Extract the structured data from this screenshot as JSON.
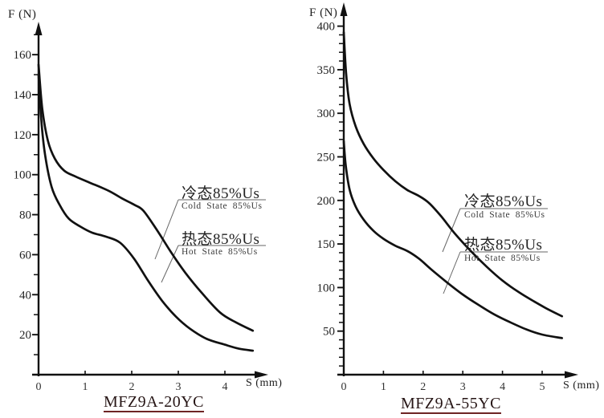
{
  "page": {
    "background": "#ffffff"
  },
  "colors": {
    "curve": "#111111",
    "axis": "#111111",
    "tick_label": "#222222",
    "x_tick_label": "#333333",
    "callout_line": "#666666",
    "title_text": "#261515",
    "title_underline": "#6e2424"
  },
  "chart_data": [
    {
      "type": "line",
      "title": "MFZ9A-20YC",
      "xlabel": "S (mm)",
      "ylabel": "F (N)",
      "xlim": [
        0,
        4.7
      ],
      "ylim": [
        0,
        170
      ],
      "x_ticks": [
        0,
        1,
        2,
        3,
        4
      ],
      "y_ticks": [
        20,
        40,
        60,
        80,
        100,
        120,
        140,
        160
      ],
      "y_minor_step": 10,
      "y_minor_max": 170,
      "grid": false,
      "legend_position": "callouts-right-middle",
      "legend": {
        "cold": {
          "zh": "冷态85%Us",
          "en": "Cold State 85%Us"
        },
        "hot": {
          "zh": "热态85%Us",
          "en": "Hot State 85%Us"
        }
      },
      "series": [
        {
          "name": "Cold State 85%Us",
          "points": [
            [
              0,
              155
            ],
            [
              0.08,
              133
            ],
            [
              0.2,
              117
            ],
            [
              0.35,
              108
            ],
            [
              0.55,
              102
            ],
            [
              0.8,
              99
            ],
            [
              1.1,
              96
            ],
            [
              1.5,
              92
            ],
            [
              1.8,
              88
            ],
            [
              2.05,
              85
            ],
            [
              2.25,
              82
            ],
            [
              2.55,
              72
            ],
            [
              2.85,
              61
            ],
            [
              3.15,
              51
            ],
            [
              3.5,
              41
            ],
            [
              3.9,
              31
            ],
            [
              4.25,
              26
            ],
            [
              4.6,
              22
            ]
          ]
        },
        {
          "name": "Hot State 85%Us",
          "points": [
            [
              0,
              150
            ],
            [
              0.06,
              127
            ],
            [
              0.14,
              110
            ],
            [
              0.28,
              94
            ],
            [
              0.45,
              85
            ],
            [
              0.65,
              78
            ],
            [
              0.9,
              74
            ],
            [
              1.15,
              71
            ],
            [
              1.45,
              69
            ],
            [
              1.75,
              66
            ],
            [
              2.05,
              58
            ],
            [
              2.35,
              47
            ],
            [
              2.65,
              37
            ],
            [
              2.95,
              29
            ],
            [
              3.25,
              23
            ],
            [
              3.6,
              18
            ],
            [
              4.0,
              15
            ],
            [
              4.3,
              13
            ],
            [
              4.6,
              12
            ]
          ]
        }
      ]
    },
    {
      "type": "line",
      "title": "MFZ9A-55YC",
      "xlabel": "S (mm)",
      "ylabel": "F (N)",
      "xlim": [
        0,
        5.6
      ],
      "ylim": [
        0,
        400
      ],
      "x_ticks": [
        0,
        1,
        2,
        3,
        4,
        5
      ],
      "y_ticks": [
        50,
        100,
        150,
        200,
        250,
        300,
        350,
        400
      ],
      "y_minor_step": 10,
      "y_minor_max": 400,
      "grid": false,
      "legend_position": "callouts-right-middle",
      "legend": {
        "cold": {
          "zh": "冷态85%Us",
          "en": "Cold State 85%Us"
        },
        "hot": {
          "zh": "热态85%Us",
          "en": "Hot State 85%Us"
        }
      },
      "series": [
        {
          "name": "Cold State 85%Us",
          "points": [
            [
              0,
              393
            ],
            [
              0.06,
              345
            ],
            [
              0.15,
              310
            ],
            [
              0.3,
              285
            ],
            [
              0.5,
              265
            ],
            [
              0.75,
              248
            ],
            [
              1.0,
              235
            ],
            [
              1.3,
              222
            ],
            [
              1.6,
              212
            ],
            [
              1.9,
              205
            ],
            [
              2.15,
              197
            ],
            [
              2.45,
              182
            ],
            [
              2.8,
              162
            ],
            [
              3.2,
              142
            ],
            [
              3.6,
              124
            ],
            [
              4.0,
              108
            ],
            [
              4.4,
              95
            ],
            [
              4.8,
              84
            ],
            [
              5.15,
              75
            ],
            [
              5.5,
              67
            ]
          ]
        },
        {
          "name": "Hot State 85%Us",
          "points": [
            [
              0,
              268
            ],
            [
              0.05,
              240
            ],
            [
              0.15,
              212
            ],
            [
              0.3,
              193
            ],
            [
              0.5,
              178
            ],
            [
              0.75,
              165
            ],
            [
              1.0,
              156
            ],
            [
              1.3,
              148
            ],
            [
              1.6,
              142
            ],
            [
              1.9,
              133
            ],
            [
              2.2,
              121
            ],
            [
              2.6,
              106
            ],
            [
              3.0,
              92
            ],
            [
              3.4,
              80
            ],
            [
              3.8,
              69
            ],
            [
              4.2,
              60
            ],
            [
              4.6,
              52
            ],
            [
              5.0,
              46
            ],
            [
              5.5,
              42
            ]
          ]
        }
      ]
    }
  ]
}
